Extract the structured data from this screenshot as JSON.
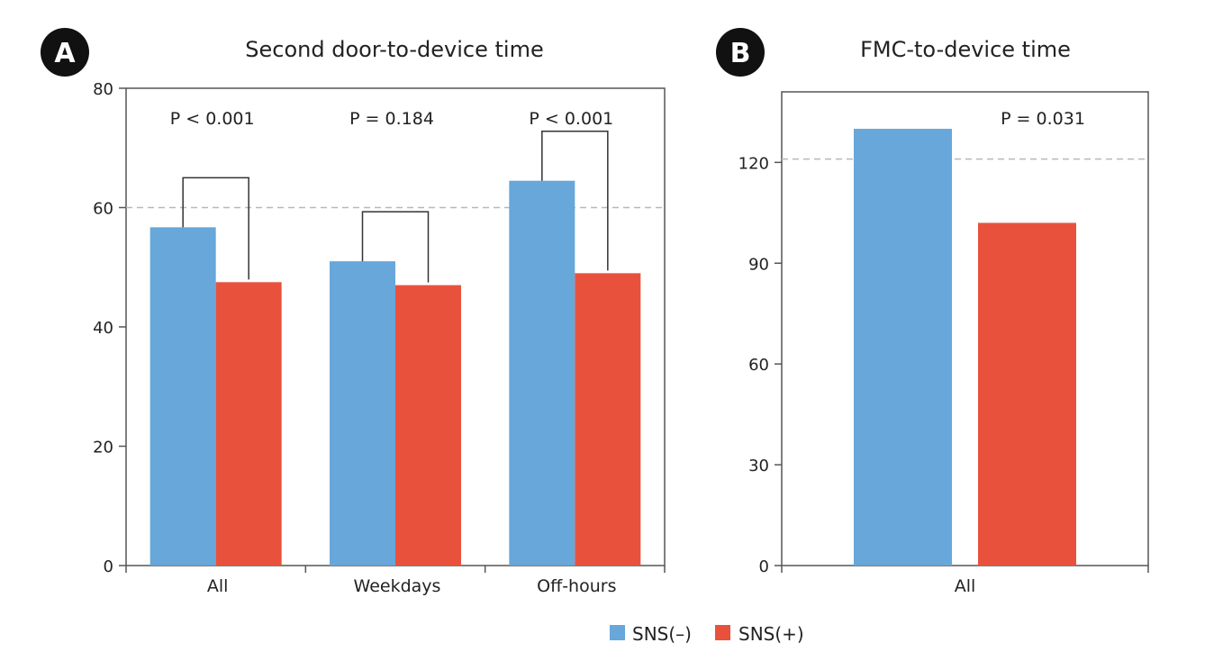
{
  "colors": {
    "sns_neg": "#67a7da",
    "sns_pos": "#e8523c",
    "axis": "#555555",
    "ref_line": "#b8b8b8",
    "badge": "#111111"
  },
  "legend": [
    {
      "label": "SNS(–)",
      "color": "#67a7da"
    },
    {
      "label": "SNS(+)",
      "color": "#e8523c"
    }
  ],
  "chart_data": [
    {
      "panel": "A",
      "type": "bar",
      "title": "Second door-to-device time",
      "xlabel": "",
      "ylabel": "",
      "categories": [
        "All",
        "Weekdays",
        "Off-hours"
      ],
      "series": [
        {
          "name": "SNS(–)",
          "values": [
            56.7,
            51.0,
            64.5
          ]
        },
        {
          "name": "SNS(+)",
          "values": [
            47.5,
            47.0,
            49.0
          ]
        }
      ],
      "ylim": [
        0,
        80
      ],
      "yticks": [
        "0",
        "20",
        "40",
        "60",
        "80"
      ],
      "reference_line": 60,
      "annotations": [
        "P < 0.001",
        "P = 0.184",
        "P < 0.001"
      ],
      "legend_position": "bottom"
    },
    {
      "panel": "B",
      "type": "bar",
      "title": "FMC-to-device time",
      "xlabel": "",
      "ylabel": "",
      "categories": [
        "All"
      ],
      "series": [
        {
          "name": "SNS(–)",
          "values": [
            130
          ]
        },
        {
          "name": "SNS(+)",
          "values": [
            102
          ]
        }
      ],
      "ylim": [
        0,
        141
      ],
      "yticks": [
        "0",
        "30",
        "60",
        "90",
        "120"
      ],
      "reference_line": 121,
      "annotations": [
        "P = 0.031"
      ],
      "legend_position": "bottom"
    }
  ]
}
